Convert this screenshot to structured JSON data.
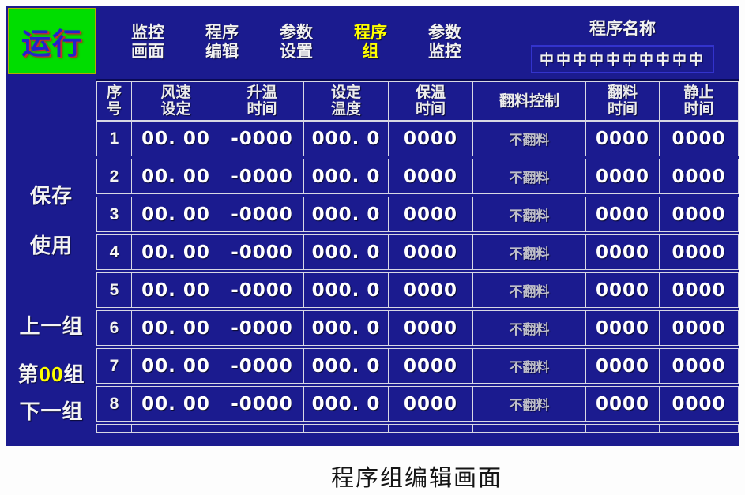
{
  "run_button": {
    "label": "运行"
  },
  "menu": {
    "items": [
      {
        "line1": "监控",
        "line2": "画面"
      },
      {
        "line1": "程序",
        "line2": "编辑"
      },
      {
        "line1": "参数",
        "line2": "设置"
      },
      {
        "line1": "程序",
        "line2": "组"
      },
      {
        "line1": "参数",
        "line2": "监控"
      }
    ]
  },
  "program_name": {
    "label": "程序名称",
    "value": "中中中中中中中中中中"
  },
  "sidebar": {
    "save_label": "保存",
    "use_label": "使用",
    "prev_label": "上一组",
    "group_prefix": "第",
    "group_number": "00",
    "group_suffix": "组",
    "next_label": "下一组"
  },
  "table": {
    "headers": [
      {
        "line1": "序",
        "line2": "号"
      },
      {
        "line1": "风速",
        "line2": "设定"
      },
      {
        "line1": "升温",
        "line2": "时间"
      },
      {
        "line1": "设定",
        "line2": "温度"
      },
      {
        "line1": "保温",
        "line2": "时间"
      },
      {
        "line1": "翻料控制",
        "line2": ""
      },
      {
        "line1": "翻料",
        "line2": "时间"
      },
      {
        "line1": "静止",
        "line2": "时间"
      }
    ],
    "rows": [
      {
        "cells": [
          "1",
          "00. 00",
          "-0000",
          "000. 0",
          "0000",
          "不翻料",
          "0000",
          "0000"
        ]
      },
      {
        "cells": [
          "2",
          "00. 00",
          "-0000",
          "000. 0",
          "0000",
          "不翻料",
          "0000",
          "0000"
        ]
      },
      {
        "cells": [
          "3",
          "00. 00",
          "-0000",
          "000. 0",
          "0000",
          "不翻料",
          "0000",
          "0000"
        ]
      },
      {
        "cells": [
          "4",
          "00. 00",
          "-0000",
          "000. 0",
          "0000",
          "不翻料",
          "0000",
          "0000"
        ]
      },
      {
        "cells": [
          "5",
          "00. 00",
          "-0000",
          "000. 0",
          "0000",
          "不翻料",
          "0000",
          "0000"
        ]
      },
      {
        "cells": [
          "6",
          "00. 00",
          "-0000",
          "000. 0",
          "0000",
          "不翻料",
          "0000",
          "0000"
        ]
      },
      {
        "cells": [
          "7",
          "00. 00",
          "-0000",
          "000. 0",
          "0000",
          "不翻料",
          "0000",
          "0000"
        ]
      },
      {
        "cells": [
          "8",
          "00. 00",
          "-0000",
          "000. 0",
          "0000",
          "不翻料",
          "0000",
          "0000"
        ]
      }
    ]
  },
  "caption": "程序组编辑画面",
  "colors": {
    "panel_bg": "#1b1b8f",
    "accent_green": "#00dd00",
    "highlight_yellow": "#ffff00",
    "grid_line": "#d8d8e4",
    "run_text_blue": "#2323cc",
    "run_shadow_red": "#cc2a2a"
  }
}
